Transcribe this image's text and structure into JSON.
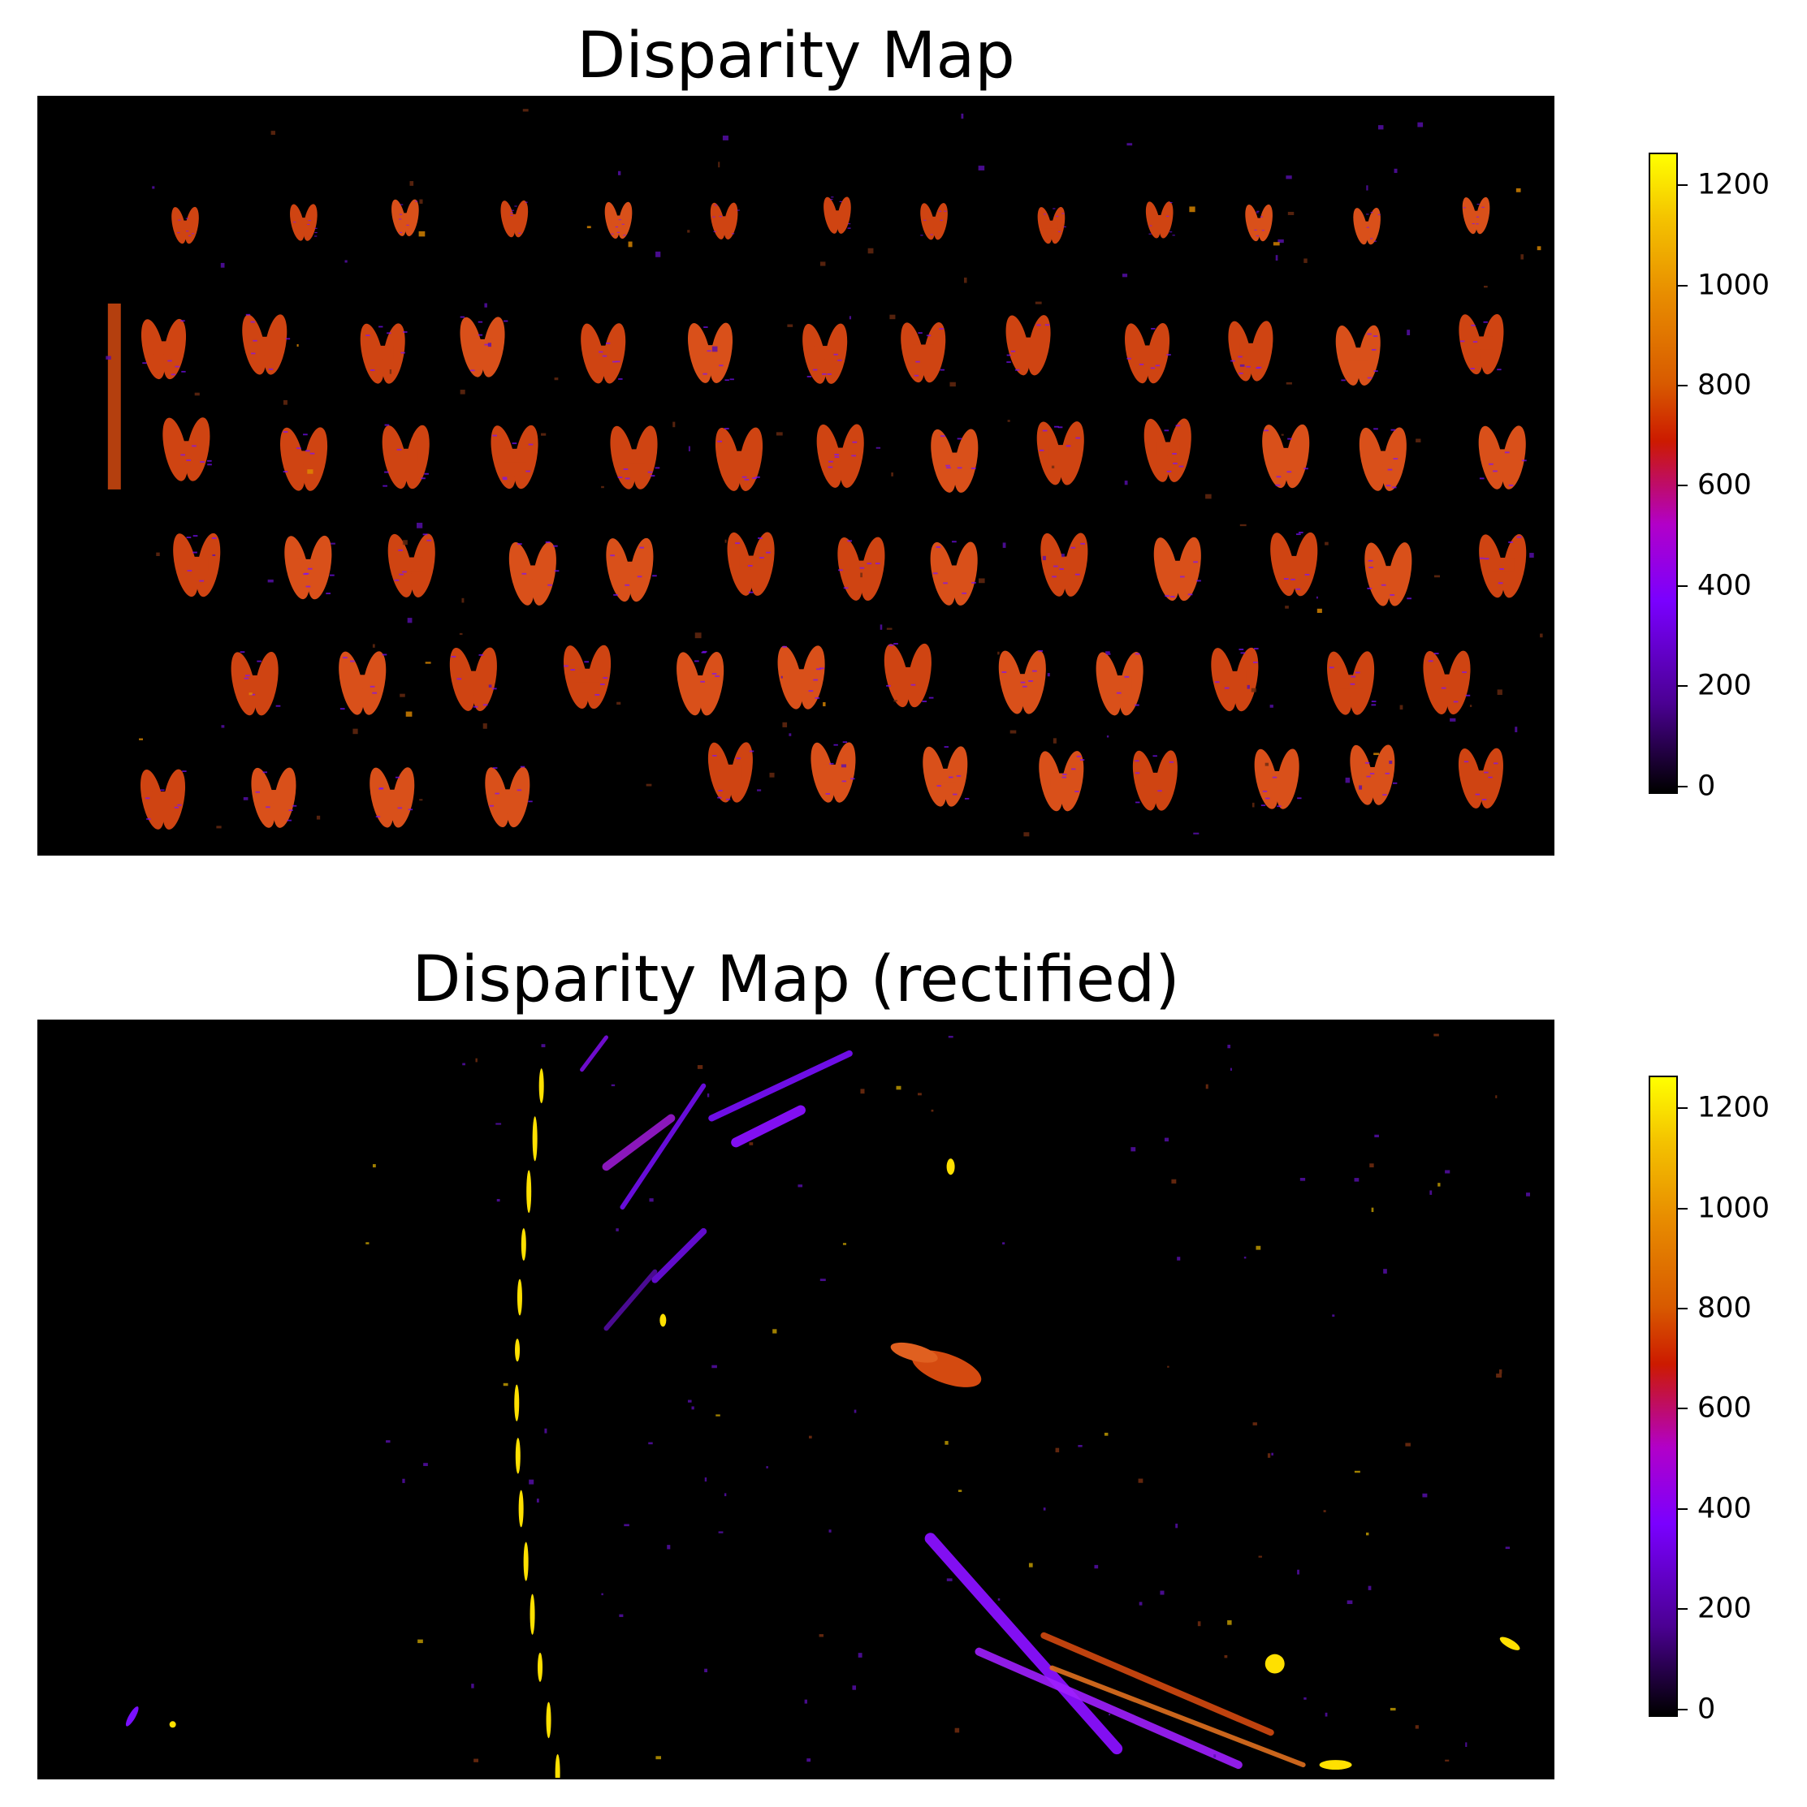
{
  "panels": [
    {
      "title": "Disparity Map",
      "colorbar": {
        "ticks": [
          "0",
          "200",
          "400",
          "600",
          "800",
          "1000",
          "1200"
        ],
        "tick_values": [
          0,
          200,
          400,
          600,
          800,
          1000,
          1200
        ],
        "range": [
          -15,
          1265
        ]
      }
    },
    {
      "title": "Disparity Map (rectified)",
      "colorbar": {
        "ticks": [
          "0",
          "200",
          "400",
          "600",
          "800",
          "1000",
          "1200"
        ],
        "tick_values": [
          0,
          200,
          400,
          600,
          800,
          1000,
          1200
        ],
        "range": [
          -15,
          1265
        ]
      }
    }
  ],
  "colors": {
    "background": "#000000",
    "blob_orange": "#d44a10",
    "blob_purple": "#7a10ff",
    "blob_yellow": "#ffe000"
  }
}
